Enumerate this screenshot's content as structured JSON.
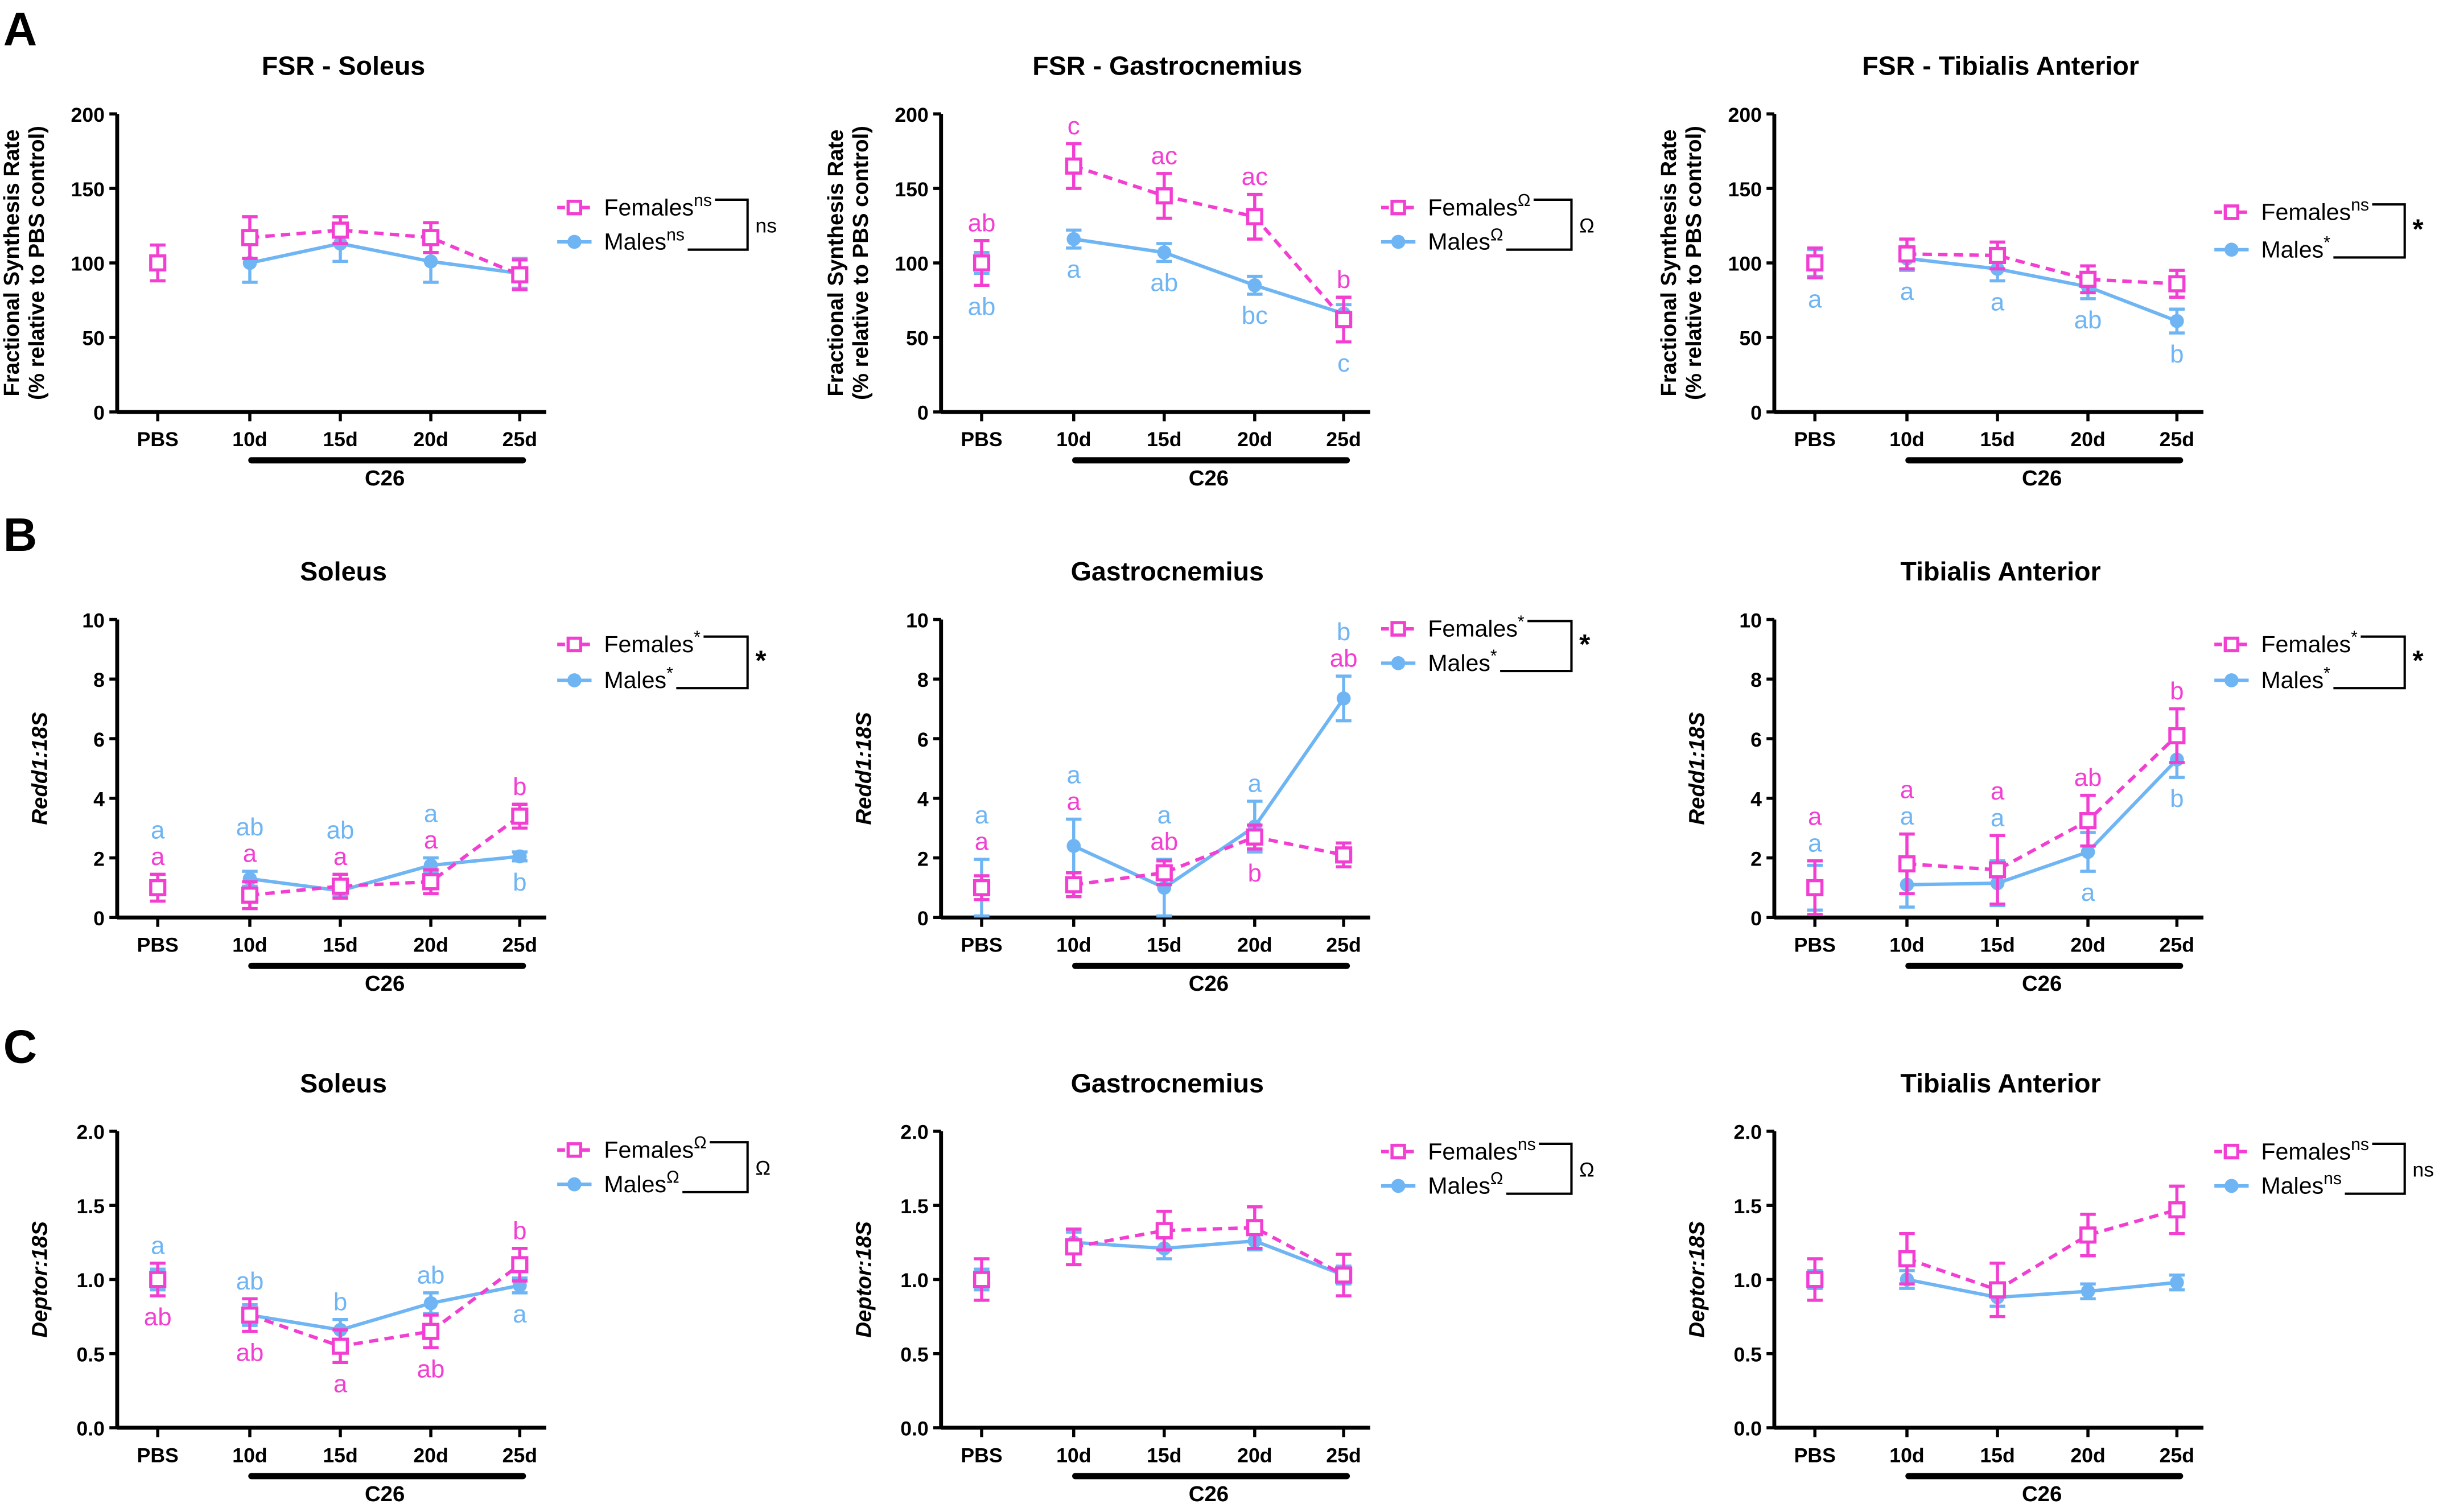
{
  "colors": {
    "females": "#f23fd2",
    "males": "#6fb5f4",
    "axis": "#000000"
  },
  "chart_data": [
    {
      "type": "line",
      "panel": "A",
      "title": "FSR - Soleus",
      "ylabel": [
        "Fractional Synthesis Rate",
        "(% relative to PBS control)"
      ],
      "ylabel_italic": false,
      "ylim": [
        0,
        200
      ],
      "yticks": [
        0,
        50,
        100,
        150,
        200
      ],
      "categories": [
        "PBS",
        "10d",
        "15d",
        "20d",
        "25d"
      ],
      "group_label": "C26",
      "series": [
        {
          "name": "Females",
          "sig": "ns",
          "mean": [
            100,
            117,
            122,
            117,
            92
          ],
          "sem": [
            12,
            14,
            9,
            10,
            10
          ]
        },
        {
          "name": "Males",
          "sig": "ns",
          "mean": [
            100,
            100,
            113,
            101,
            93
          ],
          "sem": [
            0,
            13,
            12,
            14,
            10
          ]
        }
      ],
      "bracket_sig": "ns",
      "letters": []
    },
    {
      "type": "line",
      "panel": "",
      "title": "FSR - Gastrocnemius",
      "ylabel": [
        "Fractional Synthesis Rate",
        "(% relative to PBS control)"
      ],
      "ylabel_italic": false,
      "ylim": [
        0,
        200
      ],
      "yticks": [
        0,
        50,
        100,
        150,
        200
      ],
      "categories": [
        "PBS",
        "10d",
        "15d",
        "20d",
        "25d"
      ],
      "group_label": "C26",
      "series": [
        {
          "name": "Females",
          "sig": "Ω",
          "mean": [
            100,
            165,
            145,
            131,
            62
          ],
          "sem": [
            15,
            15,
            15,
            15,
            15
          ]
        },
        {
          "name": "Males",
          "sig": "Ω",
          "mean": [
            100,
            116,
            107,
            85,
            66
          ],
          "sem": [
            7,
            6,
            6,
            6,
            6
          ]
        }
      ],
      "bracket_sig": "Ω",
      "letters": [
        {
          "i": 0,
          "s": 0,
          "text": "ab",
          "pos": "above"
        },
        {
          "i": 1,
          "s": 0,
          "text": "c",
          "pos": "above"
        },
        {
          "i": 2,
          "s": 0,
          "text": "ac",
          "pos": "above"
        },
        {
          "i": 3,
          "s": 0,
          "text": "ac",
          "pos": "above"
        },
        {
          "i": 4,
          "s": 0,
          "text": "b",
          "pos": "above"
        },
        {
          "i": 0,
          "s": 1,
          "text": "ab",
          "pos": "below"
        },
        {
          "i": 1,
          "s": 1,
          "text": "a",
          "pos": "below"
        },
        {
          "i": 2,
          "s": 1,
          "text": "ab",
          "pos": "below"
        },
        {
          "i": 3,
          "s": 1,
          "text": "bc",
          "pos": "below"
        },
        {
          "i": 4,
          "s": 1,
          "text": "c",
          "pos": "below"
        }
      ]
    },
    {
      "type": "line",
      "panel": "",
      "title": "FSR - Tibialis Anterior",
      "ylabel": [
        "Fractional Synthesis Rate",
        "(% relative to PBS control)"
      ],
      "ylabel_italic": false,
      "ylim": [
        0,
        200
      ],
      "yticks": [
        0,
        50,
        100,
        150,
        200
      ],
      "categories": [
        "PBS",
        "10d",
        "15d",
        "20d",
        "25d"
      ],
      "group_label": "C26",
      "series": [
        {
          "name": "Females",
          "sig": "ns",
          "mean": [
            100,
            106,
            105,
            89,
            86
          ],
          "sem": [
            10,
            10,
            9,
            9,
            9
          ]
        },
        {
          "name": "Males",
          "sig": "*",
          "mean": [
            100,
            103,
            96,
            84,
            61
          ],
          "sem": [
            9,
            8,
            8,
            8,
            8
          ]
        }
      ],
      "bracket_sig": "*",
      "letters": [
        {
          "i": 0,
          "s": 1,
          "text": "a",
          "pos": "below"
        },
        {
          "i": 1,
          "s": 1,
          "text": "a",
          "pos": "below"
        },
        {
          "i": 2,
          "s": 1,
          "text": "a",
          "pos": "below"
        },
        {
          "i": 3,
          "s": 1,
          "text": "ab",
          "pos": "below"
        },
        {
          "i": 4,
          "s": 1,
          "text": "b",
          "pos": "below"
        }
      ]
    },
    {
      "type": "line",
      "panel": "B",
      "title": "Soleus",
      "ylabel": [
        "Redd1:18S"
      ],
      "ylabel_italic": true,
      "ylim": [
        0,
        10
      ],
      "yticks": [
        0,
        2,
        4,
        6,
        8,
        10
      ],
      "categories": [
        "PBS",
        "10d",
        "15d",
        "20d",
        "25d"
      ],
      "group_label": "C26",
      "series": [
        {
          "name": "Females",
          "sig": "*",
          "mean": [
            1.0,
            0.75,
            1.05,
            1.2,
            3.4
          ],
          "sem": [
            0.45,
            0.45,
            0.4,
            0.4,
            0.4
          ]
        },
        {
          "name": "Males",
          "sig": "*",
          "mean": [
            1.0,
            1.3,
            0.9,
            1.75,
            2.05
          ],
          "sem": [
            0.2,
            0.25,
            0.2,
            0.25,
            0.15
          ]
        }
      ],
      "bracket_sig": "*",
      "letters": [
        {
          "i": 0,
          "s": 0,
          "text": "a",
          "pos": "above"
        },
        {
          "i": 0,
          "s": 1,
          "text": "a",
          "pos": "above"
        },
        {
          "i": 1,
          "s": 0,
          "text": "a",
          "pos": "above"
        },
        {
          "i": 1,
          "s": 1,
          "text": "ab",
          "pos": "above"
        },
        {
          "i": 2,
          "s": 0,
          "text": "a",
          "pos": "above"
        },
        {
          "i": 2,
          "s": 1,
          "text": "ab",
          "pos": "above"
        },
        {
          "i": 3,
          "s": 0,
          "text": "a",
          "pos": "above"
        },
        {
          "i": 3,
          "s": 1,
          "text": "a",
          "pos": "above"
        },
        {
          "i": 4,
          "s": 0,
          "text": "b",
          "pos": "above"
        },
        {
          "i": 4,
          "s": 1,
          "text": "b",
          "pos": "below"
        }
      ]
    },
    {
      "type": "line",
      "panel": "",
      "title": "Gastrocnemius",
      "ylabel": [
        "Redd1:18S"
      ],
      "ylabel_italic": true,
      "ylim": [
        0,
        10
      ],
      "yticks": [
        0,
        2,
        4,
        6,
        8,
        10
      ],
      "categories": [
        "PBS",
        "10d",
        "15d",
        "20d",
        "25d"
      ],
      "group_label": "C26",
      "series": [
        {
          "name": "Females",
          "sig": "*",
          "mean": [
            1.0,
            1.1,
            1.5,
            2.7,
            2.1
          ],
          "sem": [
            0.4,
            0.4,
            0.4,
            0.4,
            0.4
          ]
        },
        {
          "name": "Males",
          "sig": "*",
          "mean": [
            1.0,
            2.4,
            1.0,
            3.05,
            7.35
          ],
          "sem": [
            0.95,
            0.9,
            0.95,
            0.85,
            0.75
          ]
        }
      ],
      "bracket_sig": "*",
      "letters": [
        {
          "i": 0,
          "s": 0,
          "text": "a",
          "pos": "above"
        },
        {
          "i": 0,
          "s": 1,
          "text": "a",
          "pos": "above"
        },
        {
          "i": 1,
          "s": 0,
          "text": "a",
          "pos": "above"
        },
        {
          "i": 1,
          "s": 1,
          "text": "a",
          "pos": "above"
        },
        {
          "i": 2,
          "s": 0,
          "text": "ab",
          "pos": "above"
        },
        {
          "i": 2,
          "s": 1,
          "text": "a",
          "pos": "above"
        },
        {
          "i": 3,
          "s": 1,
          "text": "a",
          "pos": "above"
        },
        {
          "i": 3,
          "s": 0,
          "text": "b",
          "pos": "below"
        },
        {
          "i": 4,
          "s": 0,
          "text": "ab",
          "pos": "above"
        },
        {
          "i": 4,
          "s": 1,
          "text": "b",
          "pos": "above"
        }
      ]
    },
    {
      "type": "line",
      "panel": "",
      "title": "Tibialis Anterior",
      "ylabel": [
        "Redd1:18S"
      ],
      "ylabel_italic": true,
      "ylim": [
        0,
        10
      ],
      "yticks": [
        0,
        2,
        4,
        6,
        8,
        10
      ],
      "categories": [
        "PBS",
        "10d",
        "15d",
        "20d",
        "25d"
      ],
      "group_label": "C26",
      "series": [
        {
          "name": "Females",
          "sig": "*",
          "mean": [
            1.0,
            1.8,
            1.6,
            3.25,
            6.1
          ],
          "sem": [
            0.9,
            1.0,
            1.15,
            0.85,
            0.9
          ]
        },
        {
          "name": "Males",
          "sig": "*",
          "mean": [
            1.0,
            1.1,
            1.15,
            2.2,
            5.3
          ],
          "sem": [
            0.75,
            0.75,
            0.75,
            0.65,
            0.6
          ]
        }
      ],
      "bracket_sig": "*",
      "letters": [
        {
          "i": 0,
          "s": 1,
          "text": "a",
          "pos": "above"
        },
        {
          "i": 0,
          "s": 0,
          "text": "a",
          "pos": "above"
        },
        {
          "i": 1,
          "s": 1,
          "text": "a",
          "pos": "above"
        },
        {
          "i": 1,
          "s": 0,
          "text": "a",
          "pos": "above"
        },
        {
          "i": 2,
          "s": 1,
          "text": "a",
          "pos": "above"
        },
        {
          "i": 2,
          "s": 0,
          "text": "a",
          "pos": "above"
        },
        {
          "i": 3,
          "s": 0,
          "text": "ab",
          "pos": "above"
        },
        {
          "i": 3,
          "s": 1,
          "text": "a",
          "pos": "below"
        },
        {
          "i": 4,
          "s": 0,
          "text": "b",
          "pos": "above"
        },
        {
          "i": 4,
          "s": 1,
          "text": "b",
          "pos": "below"
        }
      ]
    },
    {
      "type": "line",
      "panel": "C",
      "title": "Soleus",
      "ylabel": [
        "Deptor:18S"
      ],
      "ylabel_italic": true,
      "ylim": [
        0,
        2
      ],
      "yticks": [
        "0.0",
        "0.5",
        "1.0",
        "1.5",
        "2.0"
      ],
      "categories": [
        "PBS",
        "10d",
        "15d",
        "20d",
        "25d"
      ],
      "group_label": "C26",
      "series": [
        {
          "name": "Females",
          "sig": "Ω",
          "mean": [
            1.0,
            0.76,
            0.55,
            0.65,
            1.1
          ],
          "sem": [
            0.11,
            0.11,
            0.11,
            0.11,
            0.11
          ]
        },
        {
          "name": "Males",
          "sig": "Ω",
          "mean": [
            1.0,
            0.76,
            0.66,
            0.84,
            0.96
          ],
          "sem": [
            0.07,
            0.07,
            0.07,
            0.07,
            0.05
          ]
        }
      ],
      "bracket_sig": "Ω",
      "letters": [
        {
          "i": 0,
          "s": 1,
          "text": "a",
          "pos": "above"
        },
        {
          "i": 0,
          "s": 0,
          "text": "ab",
          "pos": "below"
        },
        {
          "i": 1,
          "s": 1,
          "text": "ab",
          "pos": "above"
        },
        {
          "i": 1,
          "s": 0,
          "text": "ab",
          "pos": "below"
        },
        {
          "i": 2,
          "s": 1,
          "text": "b",
          "pos": "above"
        },
        {
          "i": 2,
          "s": 0,
          "text": "a",
          "pos": "below"
        },
        {
          "i": 3,
          "s": 1,
          "text": "ab",
          "pos": "above"
        },
        {
          "i": 3,
          "s": 0,
          "text": "ab",
          "pos": "below"
        },
        {
          "i": 4,
          "s": 0,
          "text": "b",
          "pos": "above"
        },
        {
          "i": 4,
          "s": 1,
          "text": "a",
          "pos": "below"
        }
      ]
    },
    {
      "type": "line",
      "panel": "",
      "title": "Gastrocnemius",
      "ylabel": [
        "Deptor:18S"
      ],
      "ylabel_italic": true,
      "ylim": [
        0,
        2
      ],
      "yticks": [
        "0.0",
        "0.5",
        "1.0",
        "1.5",
        "2.0"
      ],
      "categories": [
        "PBS",
        "10d",
        "15d",
        "20d",
        "25d"
      ],
      "group_label": "C26",
      "series": [
        {
          "name": "Females",
          "sig": "ns",
          "mean": [
            1.0,
            1.22,
            1.33,
            1.35,
            1.03
          ],
          "sem": [
            0.14,
            0.12,
            0.13,
            0.14,
            0.14
          ]
        },
        {
          "name": "Males",
          "sig": "Ω",
          "mean": [
            1.0,
            1.25,
            1.21,
            1.26,
            1.03
          ],
          "sem": [
            0.07,
            0.07,
            0.07,
            0.06,
            0.06
          ]
        }
      ],
      "bracket_sig": "Ω",
      "letters": []
    },
    {
      "type": "line",
      "panel": "",
      "title": "Tibialis Anterior",
      "ylabel": [
        "Deptor:18S"
      ],
      "ylabel_italic": true,
      "ylim": [
        0,
        2
      ],
      "yticks": [
        "0.0",
        "0.5",
        "1.0",
        "1.5",
        "2.0"
      ],
      "categories": [
        "PBS",
        "10d",
        "15d",
        "20d",
        "25d"
      ],
      "group_label": "C26",
      "series": [
        {
          "name": "Females",
          "sig": "ns",
          "mean": [
            1.0,
            1.14,
            0.93,
            1.3,
            1.47
          ],
          "sem": [
            0.14,
            0.17,
            0.18,
            0.14,
            0.16
          ]
        },
        {
          "name": "Males",
          "sig": "ns",
          "mean": [
            1.0,
            1.0,
            0.88,
            0.92,
            0.98
          ],
          "sem": [
            0.06,
            0.06,
            0.06,
            0.05,
            0.05
          ]
        }
      ],
      "bracket_sig": "ns",
      "letters": []
    }
  ]
}
